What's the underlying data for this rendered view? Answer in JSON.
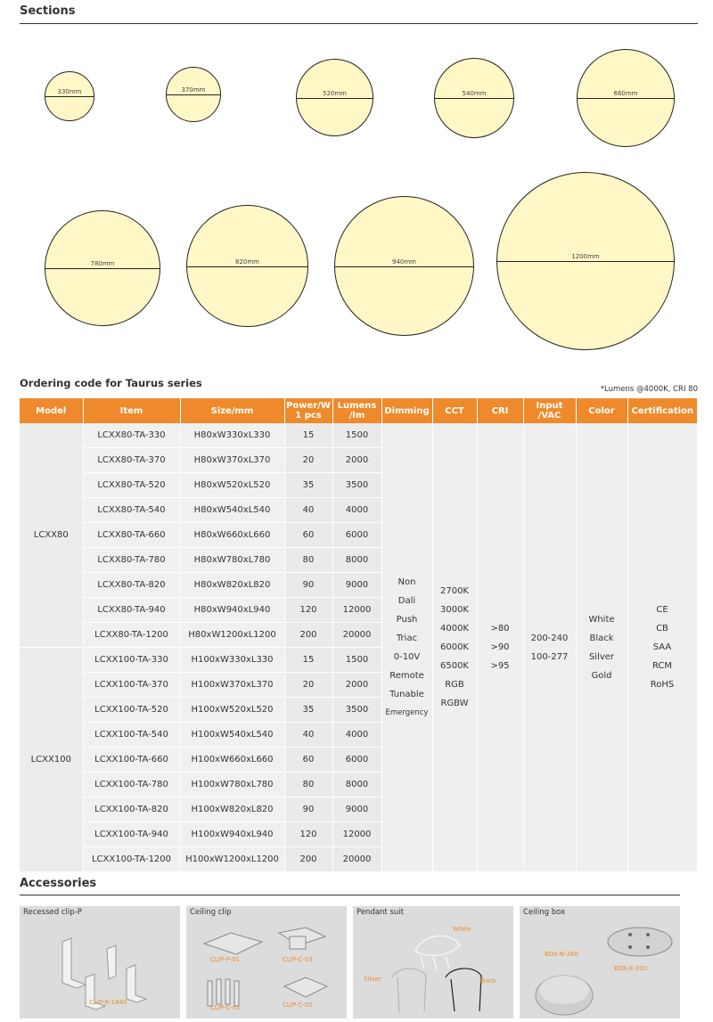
{
  "sections": {
    "title": "Sections",
    "circles": [
      {
        "label": "330mm"
      },
      {
        "label": "370mm"
      },
      {
        "label": "520mm"
      },
      {
        "label": "540mm"
      },
      {
        "label": "660mm"
      },
      {
        "label": "780mm"
      },
      {
        "label": "820mm"
      },
      {
        "label": "940mm"
      },
      {
        "label": "1200mm"
      }
    ]
  },
  "ordering": {
    "title": "Ordering code for Taurus series",
    "note": "*Lumens @4000K, CRI 80",
    "headers": {
      "model": "Model",
      "item": "Item",
      "size": "Size/mm",
      "power": "Power/W 1 pcs",
      "lumens": "Lumens /lm",
      "dimming": "Dimming",
      "cct": "CCT",
      "cri": "CRI",
      "input": "Input /VAC",
      "color": "Color",
      "certification": "Certification"
    },
    "models": [
      "LCXX80",
      "LCXX100"
    ],
    "rows": [
      {
        "item": "LCXX80-TA-330",
        "size": "H80xW330xL330",
        "power": "15",
        "lumens": "1500"
      },
      {
        "item": "LCXX80-TA-370",
        "size": "H80xW370xL370",
        "power": "20",
        "lumens": "2000"
      },
      {
        "item": "LCXX80-TA-520",
        "size": "H80xW520xL520",
        "power": "35",
        "lumens": "3500"
      },
      {
        "item": "LCXX80-TA-540",
        "size": "H80xW540xL540",
        "power": "40",
        "lumens": "4000"
      },
      {
        "item": "LCXX80-TA-660",
        "size": "H80xW660xL660",
        "power": "60",
        "lumens": "6000"
      },
      {
        "item": "LCXX80-TA-780",
        "size": "H80xW780xL780",
        "power": "80",
        "lumens": "8000"
      },
      {
        "item": "LCXX80-TA-820",
        "size": "H80xW820xL820",
        "power": "90",
        "lumens": "9000"
      },
      {
        "item": "LCXX80-TA-940",
        "size": "H80xW940xL940",
        "power": "120",
        "lumens": "12000"
      },
      {
        "item": "LCXX80-TA-1200",
        "size": "H80xW1200xL1200",
        "power": "200",
        "lumens": "20000"
      },
      {
        "item": "LCXX100-TA-330",
        "size": "H100xW330xL330",
        "power": "15",
        "lumens": "1500"
      },
      {
        "item": "LCXX100-TA-370",
        "size": "H100xW370xL370",
        "power": "20",
        "lumens": "2000"
      },
      {
        "item": "LCXX100-TA-520",
        "size": "H100xW520xL520",
        "power": "35",
        "lumens": "3500"
      },
      {
        "item": "LCXX100-TA-540",
        "size": "H100xW540xL540",
        "power": "40",
        "lumens": "4000"
      },
      {
        "item": "LCXX100-TA-660",
        "size": "H100xW660xL660",
        "power": "60",
        "lumens": "6000"
      },
      {
        "item": "LCXX100-TA-780",
        "size": "H100xW780xL780",
        "power": "80",
        "lumens": "8000"
      },
      {
        "item": "LCXX100-TA-820",
        "size": "H100xW820xL820",
        "power": "90",
        "lumens": "9000"
      },
      {
        "item": "LCXX100-TA-940",
        "size": "H100xW940xL940",
        "power": "120",
        "lumens": "12000"
      },
      {
        "item": "LCXX100-TA-1200",
        "size": "H100xW1200xL1200",
        "power": "200",
        "lumens": "20000"
      }
    ],
    "dimming": [
      "Non",
      "Dali",
      "Push",
      "Triac",
      "0-10V",
      "Remote",
      "Tunable",
      "Emergency"
    ],
    "cct": [
      "2700K",
      "3000K",
      "4000K",
      "6000K",
      "6500K",
      "RGB",
      "RGBW"
    ],
    "cri": [
      ">80",
      ">90",
      ">95"
    ],
    "input": [
      "200-240",
      "100-277"
    ],
    "color": [
      "White",
      "Black",
      "Silver",
      "Gold"
    ],
    "certification": [
      "CE",
      "CB",
      "SAA",
      "RCM",
      "RoHS"
    ]
  },
  "accessories": {
    "title": "Accessories",
    "panels": [
      {
        "title": "Recessed clip-P",
        "tags": [
          "CLIP-R-1840"
        ]
      },
      {
        "title": "Ceiling clip",
        "tags": [
          "CLIP-P-01",
          "CLIP-C-03",
          "CLIP-C-01",
          "CLIP-C-02"
        ]
      },
      {
        "title": "Pendant suit",
        "tags": [
          "White",
          "Silver",
          "Black"
        ]
      },
      {
        "title": "Ceiling box",
        "tags": [
          "BOX-N-280",
          "BOX-E-200"
        ]
      }
    ]
  },
  "colors": {
    "header_orange": "#ee8a2b",
    "circle_fill": "#fff8c6",
    "accessory_tag": "#ee8a2b"
  }
}
